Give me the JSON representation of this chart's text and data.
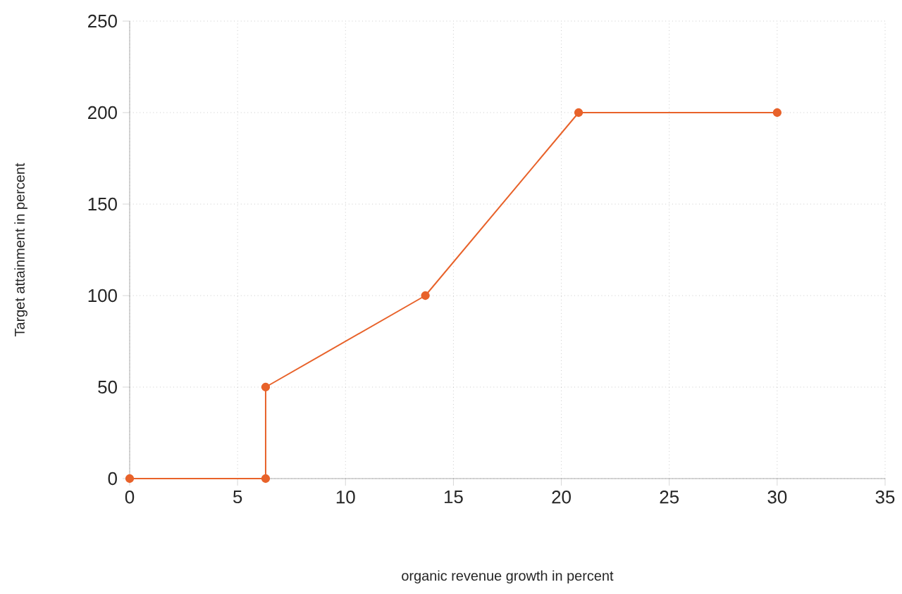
{
  "chart_data": {
    "type": "line",
    "xlabel": "organic revenue growth in percent",
    "ylabel": "Target attainment in percent",
    "series": [
      {
        "color": "#e8622a",
        "x": [
          0,
          6.3,
          6.3,
          13.7,
          20.8,
          30
        ],
        "values": [
          0,
          0,
          50,
          100,
          200,
          200
        ]
      }
    ],
    "xlim": [
      0,
      35
    ],
    "xticks": [
      0,
      5,
      10,
      15,
      20,
      25,
      30,
      35
    ],
    "ylim": [
      0,
      250
    ],
    "yticks": [
      0,
      50,
      100,
      150,
      200,
      250
    ],
    "grid": true,
    "marker": "circle",
    "line_style": "solid"
  }
}
